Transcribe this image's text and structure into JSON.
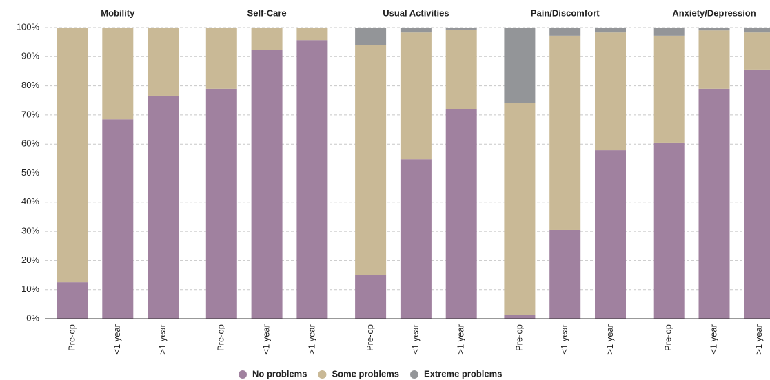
{
  "chart_data": {
    "type": "stacked-bar",
    "groups": [
      {
        "name": "Mobility",
        "categories": [
          "Pre-op",
          "<1 year",
          ">1 year"
        ]
      },
      {
        "name": "Self-Care",
        "categories": [
          "Pre-op",
          "<1 year",
          ">1 year"
        ]
      },
      {
        "name": "Usual Activities",
        "categories": [
          "Pre-op",
          "<1 year",
          ">1 year"
        ]
      },
      {
        "name": "Pain/Discomfort",
        "categories": [
          "Pre-op",
          "<1 year",
          ">1 year"
        ]
      },
      {
        "name": "Anxiety/Depression",
        "categories": [
          "Pre-op",
          "<1 year",
          ">1 year"
        ]
      }
    ],
    "series": [
      {
        "name": "No problems",
        "color": "#a0819f",
        "values": [
          [
            12.5,
            68.5,
            76.6
          ],
          [
            79,
            92.4,
            95.7
          ],
          [
            14.9,
            54.8,
            71.9
          ],
          [
            1.4,
            30.5,
            57.9
          ],
          [
            60.3,
            79,
            85.6
          ]
        ]
      },
      {
        "name": "Some problems",
        "color": "#c9b996",
        "values": [
          [
            87.5,
            31.5,
            23.4
          ],
          [
            21,
            7.6,
            4.3
          ],
          [
            79,
            43.5,
            27.4
          ],
          [
            72.6,
            66.7,
            40.4
          ],
          [
            36.9,
            20,
            12.7
          ]
        ]
      },
      {
        "name": "Extreme problems",
        "color": "#939598",
        "values": [
          [
            0,
            0,
            0
          ],
          [
            0,
            0,
            0
          ],
          [
            6.1,
            1.7,
            0.7
          ],
          [
            26,
            2.8,
            1.7
          ],
          [
            2.8,
            1,
            1.7
          ]
        ]
      }
    ],
    "ylim": [
      0,
      100
    ],
    "yticks": [
      {
        "value": 0,
        "label": "0%"
      },
      {
        "value": 10,
        "label": "10%"
      },
      {
        "value": 20,
        "label": "20%"
      },
      {
        "value": 30,
        "label": "30%"
      },
      {
        "value": 40,
        "label": "40%"
      },
      {
        "value": 50,
        "label": "50%"
      },
      {
        "value": 60,
        "label": "60%"
      },
      {
        "value": 70,
        "label": "70%"
      },
      {
        "value": 80,
        "label": "80%"
      },
      {
        "value": 90,
        "label": "90%"
      },
      {
        "value": 100,
        "label": "100%"
      }
    ],
    "grid": true,
    "legend": "bottom"
  }
}
